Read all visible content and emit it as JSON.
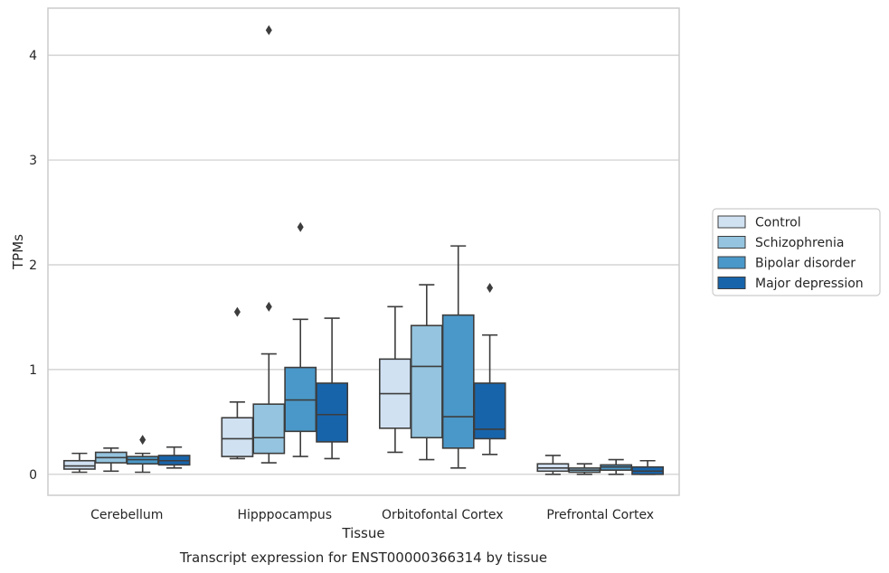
{
  "caption": "Transcript expression for ENST00000366314 by tissue",
  "chart_data": {
    "type": "box",
    "xlabel": "Tissue",
    "ylabel": "TPMs",
    "ylim": [
      -0.2,
      4.45
    ],
    "yticks": [
      "0",
      "1",
      "2",
      "3",
      "4"
    ],
    "grid": "horizontal",
    "legend_placement": "right",
    "categories": [
      "Cerebellum",
      "Hipppocampus",
      "Orbitofontal Cortex",
      "Prefrontal Cortex"
    ],
    "series": [
      {
        "name": "Control",
        "color": "#d0e1f2",
        "boxes": [
          {
            "whislo": 0.02,
            "q1": 0.05,
            "med": 0.08,
            "q3": 0.13,
            "whishi": 0.2,
            "fliers": []
          },
          {
            "whislo": 0.15,
            "q1": 0.17,
            "med": 0.34,
            "q3": 0.54,
            "whishi": 0.69,
            "fliers": [
              1.55
            ]
          },
          {
            "whislo": 0.21,
            "q1": 0.44,
            "med": 0.77,
            "q3": 1.1,
            "whishi": 1.6,
            "fliers": []
          },
          {
            "whislo": 0.0,
            "q1": 0.03,
            "med": 0.06,
            "q3": 0.1,
            "whishi": 0.18,
            "fliers": []
          }
        ]
      },
      {
        "name": "Schizophrenia",
        "color": "#94c4df",
        "boxes": [
          {
            "whislo": 0.03,
            "q1": 0.11,
            "med": 0.16,
            "q3": 0.21,
            "whishi": 0.25,
            "fliers": []
          },
          {
            "whislo": 0.11,
            "q1": 0.2,
            "med": 0.35,
            "q3": 0.67,
            "whishi": 1.15,
            "fliers": [
              1.6,
              4.24
            ]
          },
          {
            "whislo": 0.14,
            "q1": 0.35,
            "med": 1.03,
            "q3": 1.42,
            "whishi": 1.81,
            "fliers": []
          },
          {
            "whislo": 0.0,
            "q1": 0.02,
            "med": 0.04,
            "q3": 0.06,
            "whishi": 0.1,
            "fliers": []
          }
        ]
      },
      {
        "name": "Bipolar disorder",
        "color": "#4a98c9",
        "boxes": [
          {
            "whislo": 0.02,
            "q1": 0.1,
            "med": 0.14,
            "q3": 0.17,
            "whishi": 0.2,
            "fliers": [
              0.33
            ]
          },
          {
            "whislo": 0.17,
            "q1": 0.41,
            "med": 0.71,
            "q3": 1.02,
            "whishi": 1.48,
            "fliers": [
              2.36
            ]
          },
          {
            "whislo": 0.06,
            "q1": 0.25,
            "med": 0.55,
            "q3": 1.52,
            "whishi": 2.18,
            "fliers": []
          },
          {
            "whislo": 0.0,
            "q1": 0.04,
            "med": 0.07,
            "q3": 0.09,
            "whishi": 0.14,
            "fliers": []
          }
        ]
      },
      {
        "name": "Major depression",
        "color": "#1764ab",
        "boxes": [
          {
            "whislo": 0.06,
            "q1": 0.09,
            "med": 0.13,
            "q3": 0.18,
            "whishi": 0.26,
            "fliers": []
          },
          {
            "whislo": 0.15,
            "q1": 0.31,
            "med": 0.57,
            "q3": 0.87,
            "whishi": 1.49,
            "fliers": []
          },
          {
            "whislo": 0.19,
            "q1": 0.34,
            "med": 0.43,
            "q3": 0.87,
            "whishi": 1.33,
            "fliers": [
              1.78
            ]
          },
          {
            "whislo": 0.0,
            "q1": 0.0,
            "med": 0.03,
            "q3": 0.07,
            "whishi": 0.13,
            "fliers": []
          }
        ]
      }
    ]
  }
}
